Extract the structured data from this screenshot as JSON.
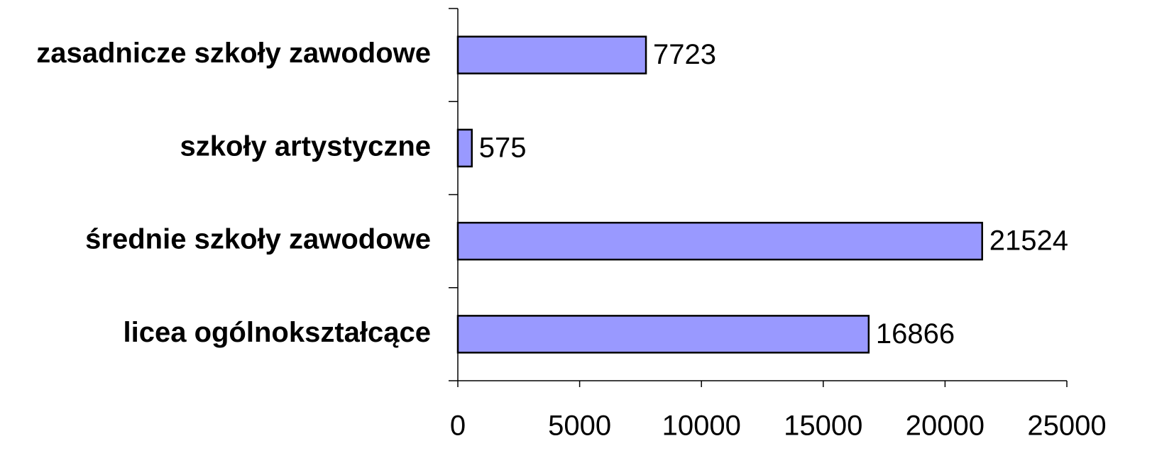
{
  "chart_data": {
    "type": "bar",
    "orientation": "horizontal",
    "categories": [
      "zasadnicze szkoły zawodowe",
      "szkoły artystyczne",
      "średnie szkoły zawodowe",
      "licea ogólnokształcące"
    ],
    "values": [
      7723,
      575,
      21524,
      16866
    ],
    "color": "#9999ff",
    "xlim": [
      0,
      25000
    ],
    "xticks": [
      0,
      5000,
      10000,
      15000,
      20000,
      25000
    ]
  }
}
